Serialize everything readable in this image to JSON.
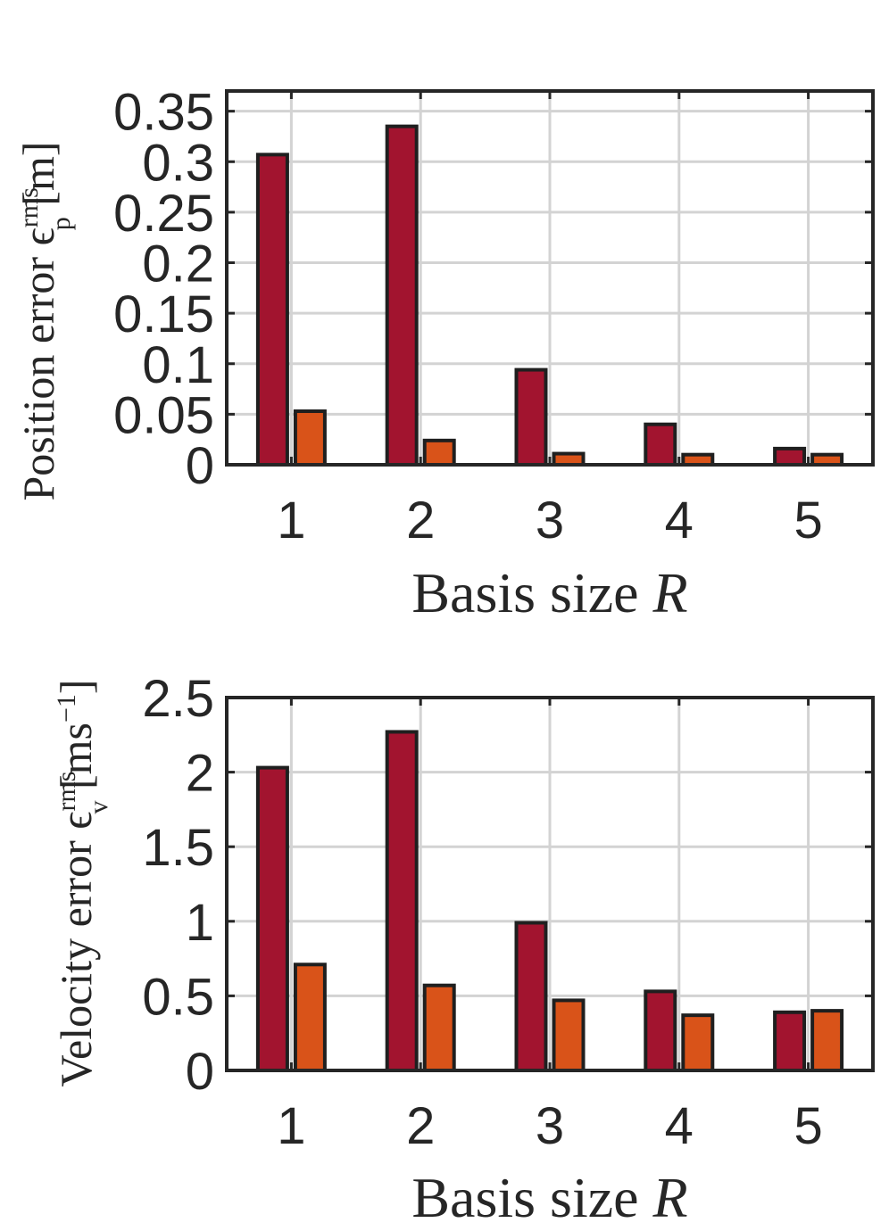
{
  "chart_data": [
    {
      "type": "bar",
      "categories": [
        "1",
        "2",
        "3",
        "4",
        "5"
      ],
      "series": [
        {
          "name": "series-1",
          "color": "#A2142F",
          "values": [
            0.307,
            0.335,
            0.094,
            0.04,
            0.016
          ]
        },
        {
          "name": "series-2",
          "color": "#D95319",
          "values": [
            0.053,
            0.024,
            0.011,
            0.01,
            0.01
          ]
        }
      ],
      "ylim": [
        0,
        0.37
      ],
      "yticks": [
        0,
        0.05,
        0.1,
        0.15,
        0.2,
        0.25,
        0.3,
        0.35
      ],
      "ytick_labels": [
        "0",
        "0.05",
        "0.1",
        "0.15",
        "0.2",
        "0.25",
        "0.3",
        "0.35"
      ],
      "grid": true,
      "xlabel": {
        "text": "Basis size ",
        "var": "R"
      },
      "ylabel": {
        "text": "Position error ϵ",
        "sup": "rms",
        "sub": "p",
        "unit": " [m]"
      }
    },
    {
      "type": "bar",
      "categories": [
        "1",
        "2",
        "3",
        "4",
        "5"
      ],
      "series": [
        {
          "name": "series-1",
          "color": "#A2142F",
          "values": [
            2.03,
            2.27,
            0.99,
            0.53,
            0.39
          ]
        },
        {
          "name": "series-2",
          "color": "#D95319",
          "values": [
            0.71,
            0.57,
            0.47,
            0.37,
            0.4
          ]
        }
      ],
      "ylim": [
        0,
        2.5
      ],
      "yticks": [
        0,
        0.5,
        1,
        1.5,
        2,
        2.5
      ],
      "ytick_labels": [
        "0",
        "0.5",
        "1",
        "1.5",
        "2",
        "2.5"
      ],
      "grid": true,
      "xlabel": {
        "text": "Basis size ",
        "var": "R"
      },
      "ylabel": {
        "text": "Velocity error ϵ",
        "sup": "rms",
        "sub": "v",
        "unit": " [ms",
        "unit_sup": "−1",
        "unit_end": "]"
      }
    }
  ]
}
